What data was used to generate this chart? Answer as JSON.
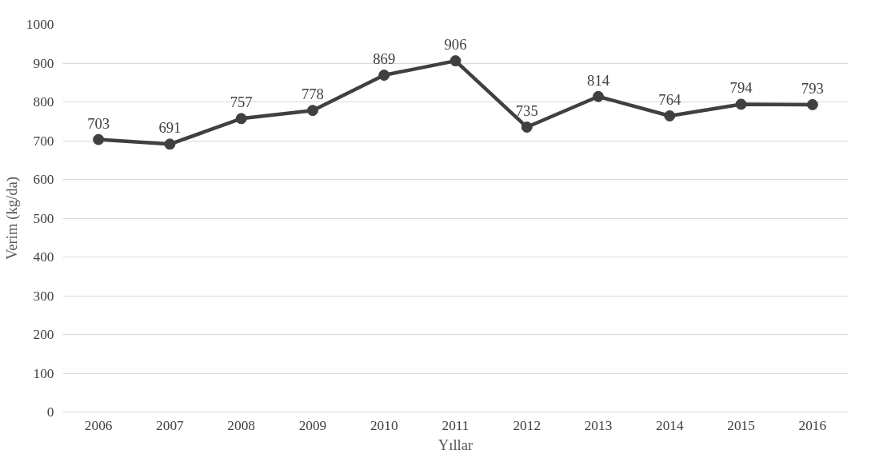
{
  "chart_data": {
    "type": "line",
    "xlabel": "Yıllar",
    "ylabel": "Verim (kg/da)",
    "categories": [
      "2006",
      "2007",
      "2008",
      "2009",
      "2010",
      "2011",
      "2012",
      "2013",
      "2014",
      "2015",
      "2016"
    ],
    "series": [
      {
        "color": "#404040",
        "values": [
          703,
          691,
          757,
          778,
          869,
          906,
          735,
          814,
          764,
          794,
          793
        ]
      }
    ],
    "ylim": [
      0,
      1000
    ],
    "yticks": [
      0,
      100,
      200,
      300,
      400,
      500,
      600,
      700,
      800,
      900,
      1000
    ],
    "grid": "y",
    "marker": "circle",
    "line_style": "solid",
    "data_labels": true
  }
}
